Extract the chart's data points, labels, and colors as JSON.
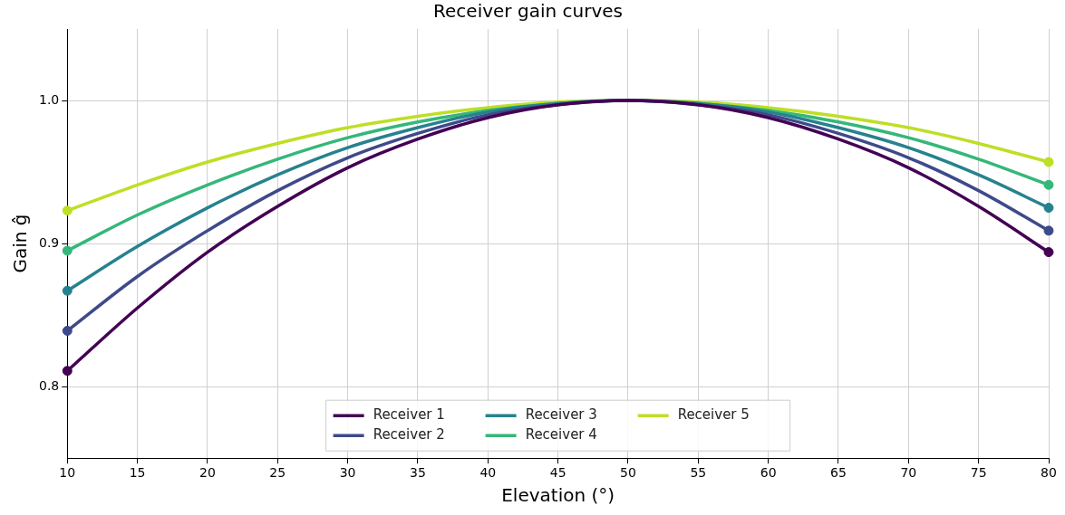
{
  "chart_data": {
    "type": "line",
    "title": "Receiver gain curves",
    "xlabel": "Elevation (°)",
    "ylabel": "Gain ĝ",
    "x": [
      10,
      15,
      20,
      25,
      30,
      35,
      40,
      45,
      50,
      55,
      60,
      65,
      70,
      75,
      80
    ],
    "series": [
      {
        "name": "Receiver 1",
        "color": "#440154",
        "values": [
          0.811,
          0.855,
          0.894,
          0.926,
          0.953,
          0.973,
          0.988,
          0.997,
          1,
          0.997,
          0.988,
          0.973,
          0.953,
          0.926,
          0.894
        ]
      },
      {
        "name": "Receiver 2",
        "color": "#3e4a89",
        "values": [
          0.839,
          0.877,
          0.909,
          0.937,
          0.96,
          0.977,
          0.99,
          0.997,
          1,
          0.997,
          0.99,
          0.977,
          0.96,
          0.937,
          0.909
        ]
      },
      {
        "name": "Receiver 3",
        "color": "#26828e",
        "values": [
          0.867,
          0.898,
          0.925,
          0.948,
          0.967,
          0.981,
          0.992,
          0.998,
          1,
          0.998,
          0.992,
          0.981,
          0.967,
          0.948,
          0.925
        ]
      },
      {
        "name": "Receiver 4",
        "color": "#35b779",
        "values": [
          0.895,
          0.92,
          0.941,
          0.959,
          0.974,
          0.985,
          0.993,
          0.998,
          1,
          0.998,
          0.993,
          0.985,
          0.974,
          0.959,
          0.941
        ]
      },
      {
        "name": "Receiver 5",
        "color": "#bddf26",
        "values": [
          0.923,
          0.941,
          0.957,
          0.97,
          0.981,
          0.989,
          0.995,
          0.999,
          1,
          0.999,
          0.995,
          0.989,
          0.981,
          0.97,
          0.957
        ]
      },
      {
        "type": "scatter",
        "marker": "circle",
        "color": "#440154",
        "values": [
          0.811,
          null,
          null,
          null,
          null,
          null,
          null,
          null,
          null,
          null,
          null,
          null,
          null,
          null,
          0.894
        ]
      },
      {
        "type": "scatter",
        "marker": "circle",
        "color": "#3e4a89",
        "values": [
          0.839,
          null,
          null,
          null,
          null,
          null,
          null,
          null,
          null,
          null,
          null,
          null,
          null,
          null,
          0.909
        ]
      },
      {
        "type": "scatter",
        "marker": "circle",
        "color": "#26828e",
        "values": [
          0.867,
          null,
          null,
          null,
          null,
          null,
          null,
          null,
          null,
          null,
          null,
          null,
          null,
          null,
          0.925
        ]
      },
      {
        "type": "scatter",
        "marker": "circle",
        "color": "#35b779",
        "values": [
          0.895,
          null,
          null,
          null,
          null,
          null,
          null,
          null,
          null,
          null,
          null,
          null,
          null,
          null,
          0.941
        ]
      },
      {
        "type": "scatter",
        "marker": "circle",
        "color": "#bddf26",
        "values": [
          0.923,
          null,
          null,
          null,
          null,
          null,
          null,
          null,
          null,
          null,
          null,
          null,
          null,
          null,
          0.957
        ]
      }
    ],
    "xlim": [
      10,
      80
    ],
    "xticks": [
      10,
      15,
      20,
      25,
      30,
      35,
      40,
      45,
      50,
      55,
      60,
      65,
      70,
      75,
      80
    ],
    "ylim": [
      0.75,
      1.05
    ],
    "yticks": [
      0.8,
      0.9,
      {
        "value": 1,
        "label": "1.0"
      }
    ],
    "grid": true,
    "legend": "bottom"
  }
}
